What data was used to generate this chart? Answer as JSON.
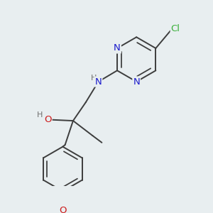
{
  "bg_color": "#e8eef0",
  "bond_color": "#3d3d3d",
  "bond_width": 1.4,
  "atom_colors": {
    "N": "#1a1acc",
    "O": "#cc1a1a",
    "Cl": "#3ab03a",
    "H": "#707070"
  },
  "font_size": 9.5,
  "font_size_h": 8.0
}
